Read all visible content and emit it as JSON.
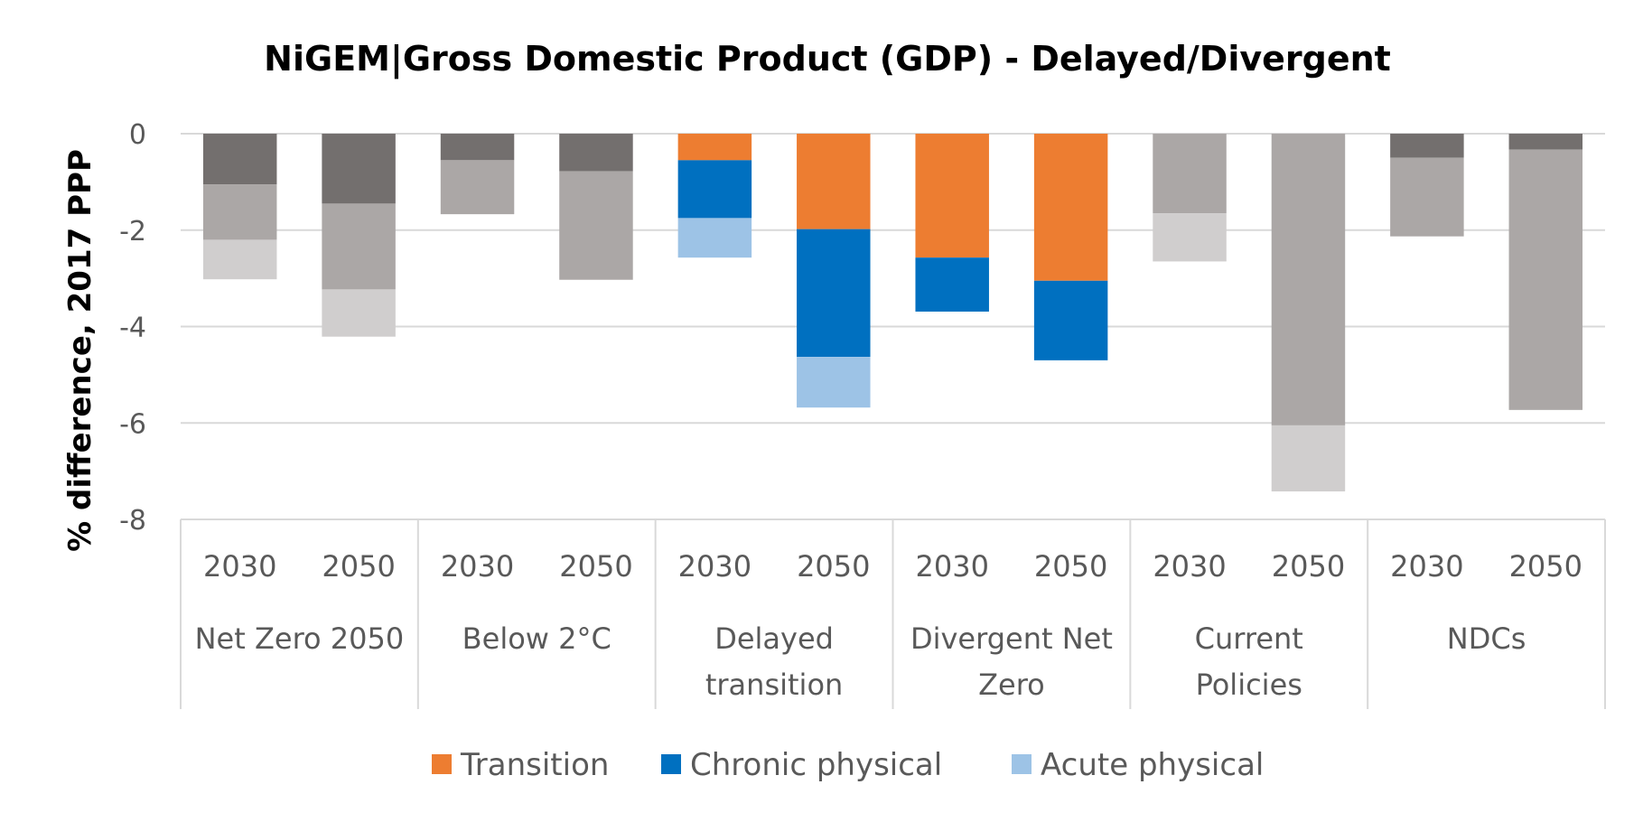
{
  "chart_data": {
    "type": "bar",
    "stacked": true,
    "title": "NiGEM|Gross Domestic Product (GDP) - Delayed/Divergent",
    "ylabel": "% difference,  2017 PPP",
    "ylim": [
      -8,
      0
    ],
    "yticks": [
      0,
      -2,
      -4,
      -6,
      -8
    ],
    "grid": true,
    "legend_position": "bottom",
    "groups": [
      {
        "label": [
          "Net Zero 2050"
        ],
        "years": [
          "2030",
          "2050"
        ]
      },
      {
        "label": [
          "Below 2°C"
        ],
        "years": [
          "2030",
          "2050"
        ]
      },
      {
        "label": [
          "Delayed",
          "transition"
        ],
        "years": [
          "2030",
          "2050"
        ]
      },
      {
        "label": [
          "Divergent Net",
          "Zero"
        ],
        "years": [
          "2030",
          "2050"
        ]
      },
      {
        "label": [
          "Current",
          "Policies"
        ],
        "years": [
          "2030",
          "2050"
        ]
      },
      {
        "label": [
          "NDCs"
        ],
        "years": [
          "2030",
          "2050"
        ]
      }
    ],
    "series": [
      {
        "name": "Transition",
        "color": "#ED7D31",
        "values": [
          0,
          0,
          0,
          0,
          -0.55,
          -1.98,
          -2.57,
          -3.05,
          0,
          0,
          0,
          0
        ]
      },
      {
        "color": "#736F6E",
        "values": [
          -1.05,
          -1.45,
          -0.55,
          -0.78,
          0,
          0,
          0,
          0,
          0,
          0,
          -0.5,
          -0.33
        ]
      },
      {
        "name": "Chronic physical",
        "color": "#0070C0",
        "values": [
          0,
          0,
          0,
          0,
          -1.2,
          -2.65,
          -1.12,
          -1.65,
          0,
          0,
          0,
          0
        ]
      },
      {
        "color": "#ABA7A6",
        "values": [
          -1.15,
          -1.78,
          -1.12,
          -2.25,
          0,
          0,
          0,
          0,
          -1.65,
          -6.05,
          -1.63,
          -5.4
        ]
      },
      {
        "name": "Acute physical",
        "color": "#9DC3E6",
        "values": [
          0,
          0,
          0,
          0,
          -0.82,
          -1.05,
          0,
          0,
          0,
          0,
          0,
          0
        ]
      },
      {
        "color": "#D0CECE",
        "values": [
          -0.82,
          -0.98,
          0,
          0,
          0,
          0,
          0,
          0,
          -1.0,
          -1.37,
          0,
          0
        ]
      }
    ]
  }
}
